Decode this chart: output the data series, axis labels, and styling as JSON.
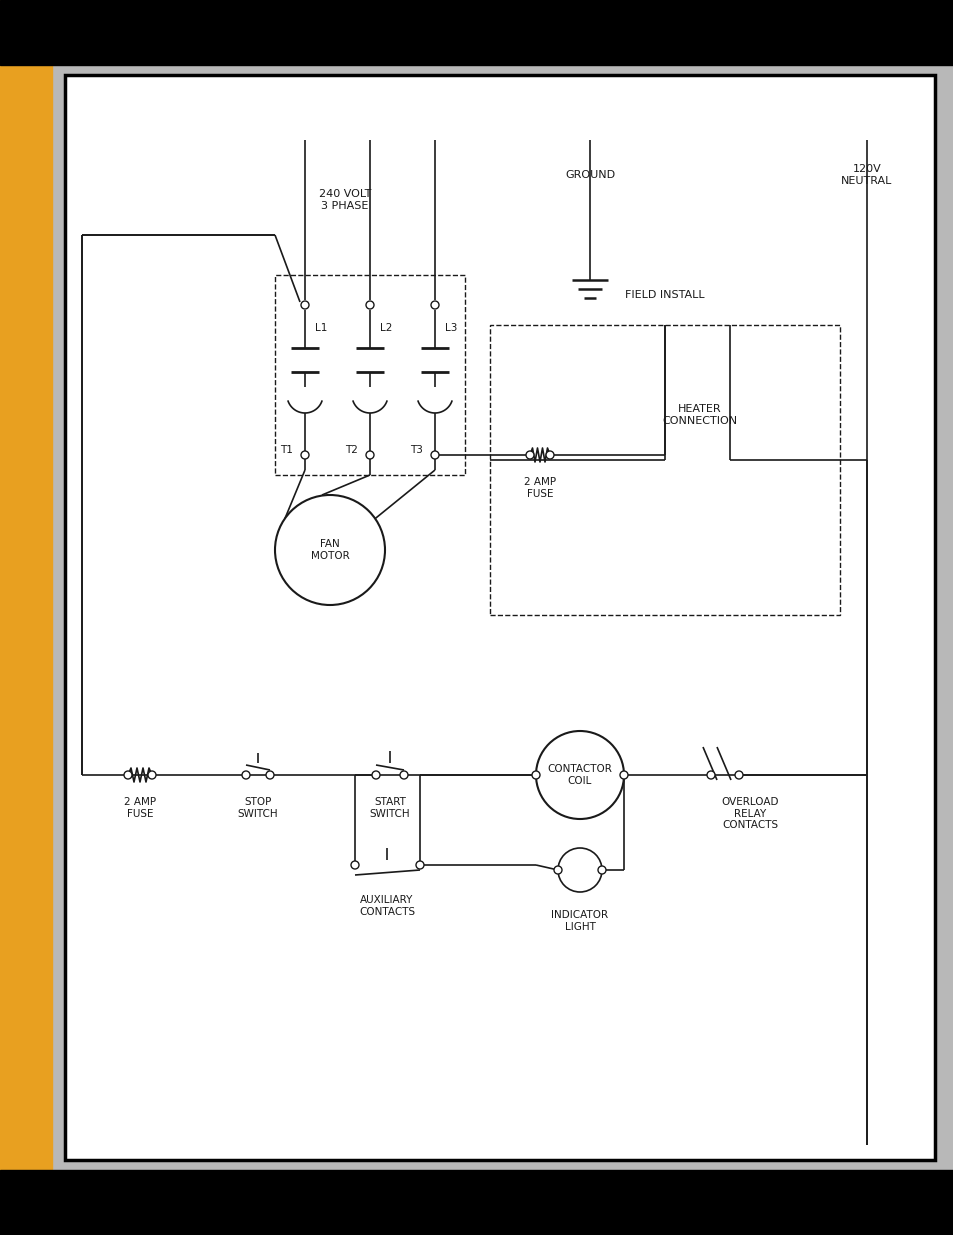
{
  "lc": "#1a1a1a",
  "orange": "#E8A020",
  "page_bg": "#b8b8b8",
  "labels": {
    "volt3phase": "240 VOLT\n3 PHASE",
    "ground": "GROUND",
    "neutral": "120V\nNEUTRAL",
    "field_install": "FIELD INSTALL",
    "heater": "HEATER\nCONNECTION",
    "fuse_top": "2 AMP\nFUSE",
    "fan_motor": "FAN\nMOTOR",
    "fuse_bot": "2 AMP\nFUSE",
    "stop": "STOP\nSWITCH",
    "start": "START\nSWITCH",
    "coil": "CONTACTOR\nCOIL",
    "overload": "OVERLOAD\nRELAY\nCONTACTS",
    "aux": "AUXILIARY\nCONTACTS",
    "indicator": "INDICATOR\nLIGHT",
    "L1": "L1",
    "L2": "L2",
    "L3": "L3",
    "T1": "T1",
    "T2": "T2",
    "T3": "T3"
  },
  "fs": 7.5,
  "lw": 1.2
}
